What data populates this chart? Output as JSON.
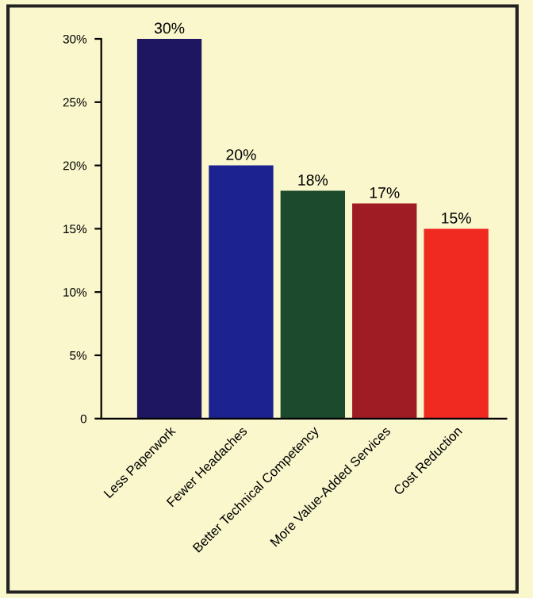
{
  "chart_data": {
    "type": "bar",
    "categories": [
      "Less Paperwork",
      "Fewer Headaches",
      "Better Technical Competency",
      "More Value-Added Services",
      "Cost Reduction"
    ],
    "values": [
      30,
      20,
      18,
      17,
      15
    ],
    "colors": [
      "#1e1660",
      "#1c2390",
      "#1c4a2c",
      "#a01c24",
      "#f02a20"
    ],
    "value_labels": [
      "30%",
      "20%",
      "18%",
      "17%",
      "15%"
    ],
    "ylim": [
      0,
      30
    ],
    "yticks": [
      0,
      {
        "value": 5,
        "label": "5%"
      },
      {
        "value": 10,
        "label": "10%"
      },
      {
        "value": 15,
        "label": "15%"
      },
      {
        "value": 20,
        "label": "20%"
      },
      {
        "value": 25,
        "label": "25%"
      },
      {
        "value": 30,
        "label": "30%"
      }
    ],
    "grid": false
  }
}
